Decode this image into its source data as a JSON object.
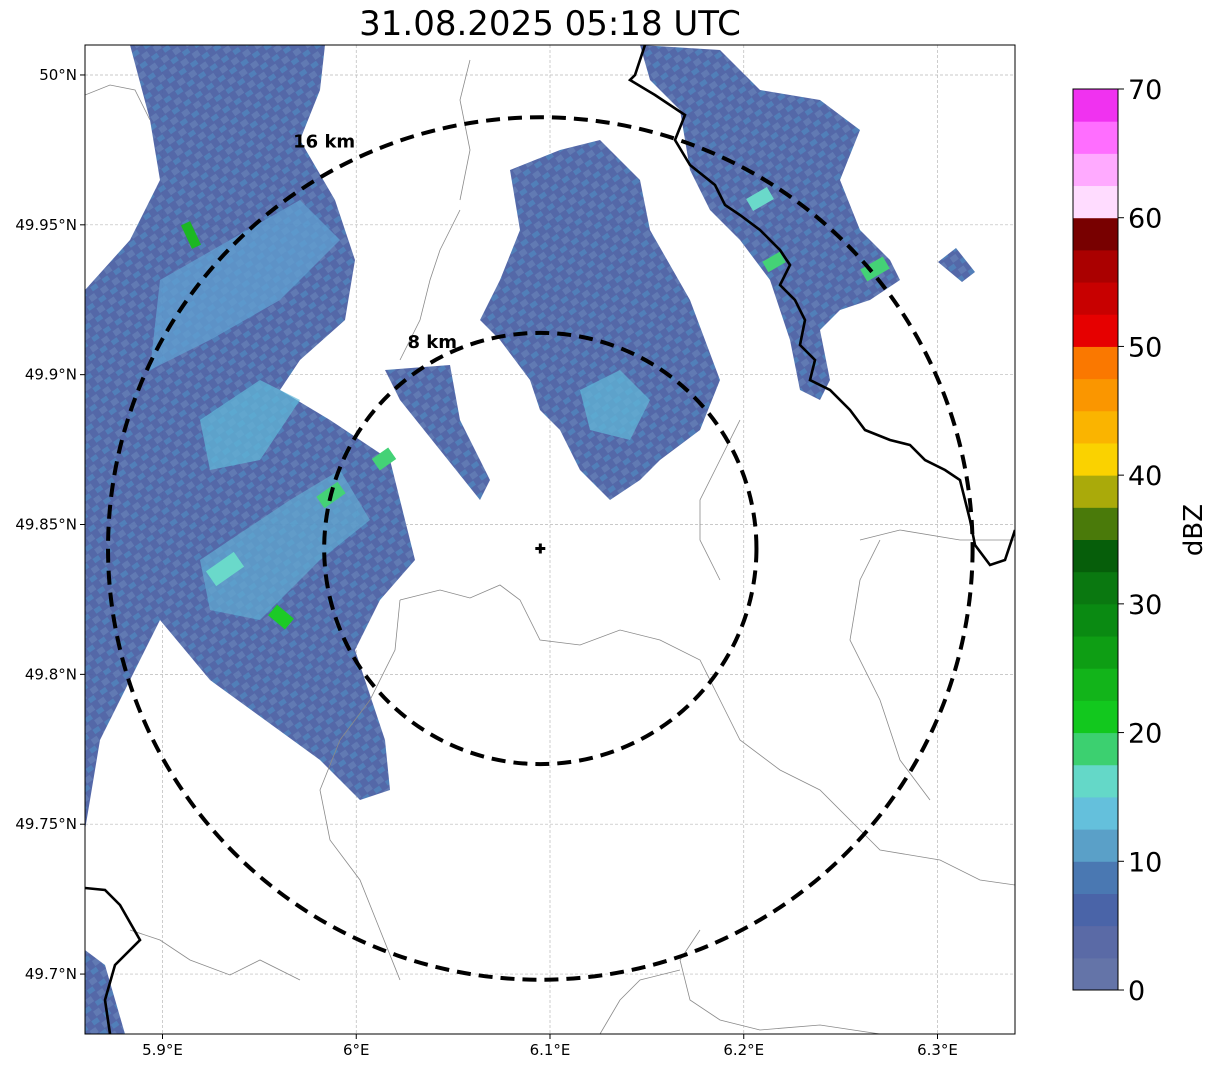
{
  "title": "31.08.2025 05:18 UTC",
  "map": {
    "lon_range": [
      5.86,
      6.34
    ],
    "lat_range": [
      49.68,
      50.01
    ],
    "lon_ticks": [
      5.9,
      6.0,
      6.1,
      6.2,
      6.3
    ],
    "lon_tick_labels": [
      "5.9°E",
      "6°E",
      "6.1°E",
      "6.2°E",
      "6.3°E"
    ],
    "lat_ticks": [
      49.7,
      49.75,
      49.8,
      49.85,
      49.9,
      49.95,
      50.0
    ],
    "lat_tick_labels": [
      "49.7°N",
      "49.75°N",
      "49.8°N",
      "49.85°N",
      "49.9°N",
      "49.95°N",
      "50°N"
    ],
    "grid": true,
    "radar_site": {
      "lon": 6.095,
      "lat": 49.842,
      "icon": "plus-marker-icon"
    },
    "range_rings": [
      {
        "label": "8 km",
        "radius_km": 8
      },
      {
        "label": "16 km",
        "radius_km": 16
      }
    ]
  },
  "colorbar": {
    "label": "dBZ",
    "min": 0,
    "max": 70,
    "ticks": [
      0,
      10,
      20,
      30,
      40,
      50,
      60,
      70
    ],
    "tick_labels": [
      "0",
      "10",
      "20",
      "30",
      "40",
      "50",
      "60",
      "70"
    ],
    "colors": [
      "#6474a8",
      "#5a6aa6",
      "#4a64a8",
      "#4a78b2",
      "#5aa0c8",
      "#64c0dc",
      "#64d8c8",
      "#3cd070",
      "#12c81e",
      "#12b41a",
      "#0e9e14",
      "#0a8a12",
      "#0a7810",
      "#065e0a",
      "#4a7a0a",
      "#aaaa0a",
      "#fad200",
      "#fab400",
      "#fa9600",
      "#fa7800",
      "#e60000",
      "#c80000",
      "#aa0000",
      "#780000",
      "#ffdcff",
      "#ffaaff",
      "#ff6eff",
      "#f032f0"
    ]
  }
}
